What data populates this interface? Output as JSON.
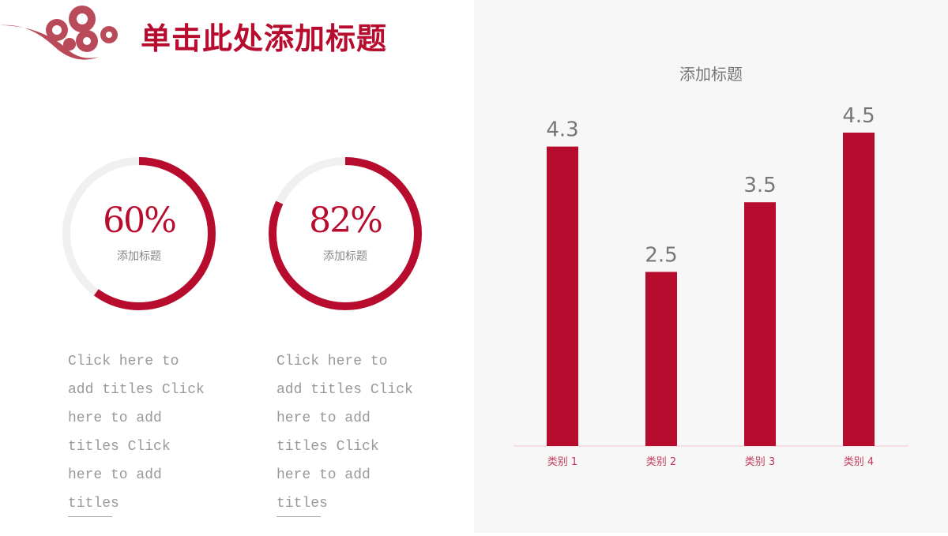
{
  "header": {
    "title": "单击此处添加标题"
  },
  "rings": [
    {
      "percent": 60,
      "label": "60%",
      "caption": "添加标题",
      "text": "Click here to add titles Click here to add titles Click here to add titles"
    },
    {
      "percent": 82,
      "label": "82%",
      "caption": "添加标题",
      "text": "Click here to add titles Click here to add titles Click here to add titles"
    }
  ],
  "colors": {
    "accent": "#b80c2f",
    "track": "#f0f0f0",
    "panel": "#f7f7f7"
  },
  "chart_data": {
    "type": "bar",
    "title": "添加标题",
    "categories": [
      "类别 1",
      "类别 2",
      "类别 3",
      "类别 4"
    ],
    "values": [
      4.3,
      2.5,
      3.5,
      4.5
    ],
    "ylim": [
      0,
      4.5
    ],
    "grid": false
  }
}
